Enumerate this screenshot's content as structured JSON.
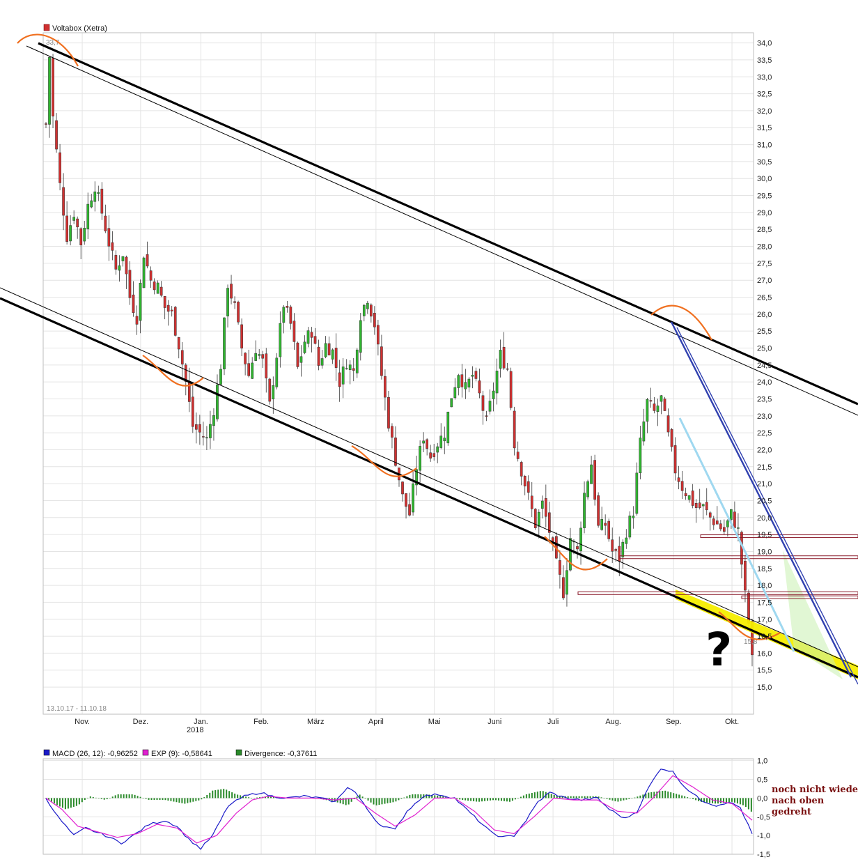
{
  "chart_data": [
    {
      "type": "candlestick",
      "legend_label": "Voltabox (Xetra)",
      "colors": {
        "up": "#2fb52f",
        "down": "#d03030",
        "legend_swatch": "#d03030"
      },
      "date_range_label": "13.10.17 - 11.10.18",
      "year_label": "2018",
      "peak_label": "33,7",
      "low_label": "15,8",
      "ylim": [
        14.2,
        34.3
      ],
      "y_ticks": [
        "34,0",
        "33,5",
        "33,0",
        "32,5",
        "32,0",
        "31,5",
        "31,0",
        "30,5",
        "30,0",
        "29,5",
        "29,0",
        "28,5",
        "28,0",
        "27,5",
        "27,0",
        "26,5",
        "26,0",
        "25,5",
        "25,0",
        "24,5",
        "24,0",
        "23,5",
        "23,0",
        "22,5",
        "22,0",
        "21,5",
        "21,0",
        "20,5",
        "20,0",
        "19,5",
        "19,0",
        "18,5",
        "18,0",
        "17,5",
        "17,0",
        "16,5",
        "16,0",
        "15,5",
        "15,0"
      ],
      "x_ticks": [
        {
          "label": "Nov.",
          "day": 19
        },
        {
          "label": "Dez.",
          "day": 49
        },
        {
          "label": "Jan.",
          "day": 80
        },
        {
          "label": "Feb.",
          "day": 111
        },
        {
          "label": "März",
          "day": 139
        },
        {
          "label": "April",
          "day": 170
        },
        {
          "label": "Mai",
          "day": 200
        },
        {
          "label": "Juni",
          "day": 231
        },
        {
          "label": "Juli",
          "day": 261
        },
        {
          "label": "Aug.",
          "day": 292
        },
        {
          "label": "Sep.",
          "day": 323
        },
        {
          "label": "Okt.",
          "day": 353
        }
      ],
      "price_path": [
        [
          0,
          31.6
        ],
        [
          1,
          33.6
        ],
        [
          2,
          31.8
        ],
        [
          4,
          29.8
        ],
        [
          6,
          28.3
        ],
        [
          8,
          29.0
        ],
        [
          10,
          28.1
        ],
        [
          12,
          29.2
        ],
        [
          14,
          29.8
        ],
        [
          16,
          29.0
        ],
        [
          18,
          28.1
        ],
        [
          20,
          27.3
        ],
        [
          22,
          27.8
        ],
        [
          24,
          26.5
        ],
        [
          26,
          25.9
        ],
        [
          28,
          27.8
        ],
        [
          30,
          27.0
        ],
        [
          32,
          26.8
        ],
        [
          34,
          26.2
        ],
        [
          36,
          26.0
        ],
        [
          38,
          25.1
        ],
        [
          40,
          24.0
        ],
        [
          42,
          22.7
        ],
        [
          44,
          22.5
        ],
        [
          46,
          22.3
        ],
        [
          48,
          23.2
        ],
        [
          50,
          24.5
        ],
        [
          52,
          26.9
        ],
        [
          54,
          26.2
        ],
        [
          56,
          25.0
        ],
        [
          58,
          24.2
        ],
        [
          60,
          25.0
        ],
        [
          62,
          24.6
        ],
        [
          64,
          23.3
        ],
        [
          66,
          24.8
        ],
        [
          68,
          26.3
        ],
        [
          70,
          25.7
        ],
        [
          72,
          24.4
        ],
        [
          74,
          25.2
        ],
        [
          76,
          25.5
        ],
        [
          78,
          24.5
        ],
        [
          80,
          25.1
        ],
        [
          82,
          24.9
        ],
        [
          84,
          24.0
        ],
        [
          86,
          24.6
        ],
        [
          88,
          24.3
        ],
        [
          90,
          26.0
        ],
        [
          92,
          26.5
        ],
        [
          94,
          25.7
        ],
        [
          96,
          24.2
        ],
        [
          98,
          22.8
        ],
        [
          100,
          21.7
        ],
        [
          102,
          20.6
        ],
        [
          104,
          20.1
        ],
        [
          106,
          21.5
        ],
        [
          108,
          22.4
        ],
        [
          110,
          21.8
        ],
        [
          112,
          22.2
        ],
        [
          114,
          22.5
        ],
        [
          116,
          23.6
        ],
        [
          118,
          24.3
        ],
        [
          120,
          23.8
        ],
        [
          122,
          24.2
        ],
        [
          124,
          23.6
        ],
        [
          126,
          22.8
        ],
        [
          128,
          23.8
        ],
        [
          130,
          24.8
        ],
        [
          132,
          24.4
        ],
        [
          134,
          22.2
        ],
        [
          136,
          21.4
        ],
        [
          138,
          20.6
        ],
        [
          140,
          19.8
        ],
        [
          142,
          20.4
        ],
        [
          144,
          19.6
        ],
        [
          146,
          18.6
        ],
        [
          148,
          17.8
        ],
        [
          150,
          19.4
        ],
        [
          152,
          19.0
        ],
        [
          154,
          20.7
        ],
        [
          156,
          21.6
        ],
        [
          158,
          19.7
        ],
        [
          160,
          19.8
        ],
        [
          162,
          19.0
        ],
        [
          164,
          18.8
        ],
        [
          166,
          19.6
        ],
        [
          168,
          20.2
        ],
        [
          170,
          22.2
        ],
        [
          172,
          23.4
        ],
        [
          174,
          23.1
        ],
        [
          176,
          23.5
        ],
        [
          178,
          22.4
        ],
        [
          180,
          21.4
        ],
        [
          182,
          20.9
        ],
        [
          184,
          20.6
        ],
        [
          186,
          20.3
        ],
        [
          188,
          20.3
        ],
        [
          190,
          20.0
        ],
        [
          192,
          19.8
        ],
        [
          194,
          19.6
        ],
        [
          196,
          20.1
        ],
        [
          198,
          19.6
        ],
        [
          200,
          17.7
        ],
        [
          201,
          16.9
        ],
        [
          202,
          15.9
        ]
      ],
      "series": [
        {
          "name": "Voltabox (Xetra)"
        }
      ],
      "horizontal_lines": [
        19.45,
        18.83,
        17.77,
        17.65
      ],
      "annotations": {
        "question_mark": "?"
      }
    },
    {
      "type": "line+bar",
      "ylim": [
        -1.5,
        1.05
      ],
      "y_ticks": [
        {
          "label": "1,0",
          "value": 1.0
        },
        {
          "label": "0,5",
          "value": 0.5
        },
        {
          "label": "0,0",
          "value": 0.0
        },
        {
          "label": "-0,5",
          "value": -0.5
        },
        {
          "label": "-1,0",
          "value": -1.0
        },
        {
          "label": "-1,5",
          "value": -1.5
        }
      ],
      "series": [
        {
          "name": "MACD (26, 12): -0,96252",
          "color": "#1a1ac8"
        },
        {
          "name": "EXP (9): -0,58641",
          "color": "#e020d0"
        },
        {
          "name": "Divergence: -0,37611",
          "color": "#2a8a2a"
        }
      ],
      "macd_path": [
        [
          0,
          0.0
        ],
        [
          6,
          -0.5
        ],
        [
          14,
          -1.0
        ],
        [
          20,
          -0.8
        ],
        [
          30,
          -1.0
        ],
        [
          38,
          -1.2
        ],
        [
          44,
          -1.0
        ],
        [
          52,
          -0.7
        ],
        [
          60,
          -0.6
        ],
        [
          66,
          -0.75
        ],
        [
          72,
          -1.1
        ],
        [
          78,
          -1.35
        ],
        [
          84,
          -1.0
        ],
        [
          92,
          -0.2
        ],
        [
          100,
          0.05
        ],
        [
          108,
          0.15
        ],
        [
          114,
          0.05
        ],
        [
          122,
          0.0
        ],
        [
          130,
          0.05
        ],
        [
          138,
          0.0
        ],
        [
          146,
          -0.1
        ],
        [
          152,
          0.3
        ],
        [
          156,
          0.15
        ],
        [
          162,
          -0.3
        ],
        [
          168,
          -0.7
        ],
        [
          176,
          -0.85
        ],
        [
          182,
          -0.35
        ],
        [
          190,
          0.05
        ],
        [
          198,
          0.1
        ],
        [
          206,
          0.0
        ],
        [
          212,
          -0.3
        ],
        [
          218,
          -0.6
        ],
        [
          224,
          -0.9
        ],
        [
          230,
          -1.05
        ],
        [
          236,
          -1.0
        ],
        [
          242,
          -0.6
        ],
        [
          248,
          -0.1
        ],
        [
          254,
          0.15
        ],
        [
          262,
          0.0
        ],
        [
          270,
          -0.05
        ],
        [
          278,
          0.0
        ],
        [
          284,
          -0.3
        ],
        [
          292,
          -0.55
        ],
        [
          298,
          -0.35
        ],
        [
          304,
          0.3
        ],
        [
          310,
          0.8
        ],
        [
          316,
          0.7
        ],
        [
          322,
          0.3
        ],
        [
          330,
          -0.05
        ],
        [
          338,
          -0.2
        ],
        [
          344,
          -0.1
        ],
        [
          350,
          -0.25
        ],
        [
          356,
          -0.96
        ]
      ],
      "signal_path": [
        [
          0,
          0.0
        ],
        [
          8,
          -0.3
        ],
        [
          16,
          -0.75
        ],
        [
          26,
          -0.9
        ],
        [
          36,
          -1.05
        ],
        [
          46,
          -0.95
        ],
        [
          56,
          -0.7
        ],
        [
          66,
          -0.8
        ],
        [
          76,
          -1.2
        ],
        [
          86,
          -1.0
        ],
        [
          96,
          -0.4
        ],
        [
          104,
          -0.05
        ],
        [
          112,
          0.05
        ],
        [
          122,
          0.0
        ],
        [
          134,
          0.0
        ],
        [
          146,
          -0.05
        ],
        [
          156,
          0.0
        ],
        [
          166,
          -0.4
        ],
        [
          176,
          -0.75
        ],
        [
          186,
          -0.45
        ],
        [
          196,
          0.0
        ],
        [
          206,
          0.0
        ],
        [
          216,
          -0.35
        ],
        [
          226,
          -0.85
        ],
        [
          236,
          -0.95
        ],
        [
          246,
          -0.5
        ],
        [
          256,
          0.0
        ],
        [
          266,
          -0.05
        ],
        [
          278,
          -0.05
        ],
        [
          288,
          -0.35
        ],
        [
          298,
          -0.4
        ],
        [
          306,
          0.0
        ],
        [
          316,
          0.6
        ],
        [
          326,
          0.3
        ],
        [
          336,
          -0.05
        ],
        [
          346,
          -0.15
        ],
        [
          356,
          -0.59
        ]
      ],
      "divergence_path": [
        [
          0,
          0.0
        ],
        [
          6,
          -0.2
        ],
        [
          10,
          -0.3
        ],
        [
          16,
          -0.2
        ],
        [
          22,
          0.05
        ],
        [
          30,
          -0.05
        ],
        [
          36,
          0.1
        ],
        [
          44,
          0.1
        ],
        [
          52,
          -0.05
        ],
        [
          60,
          -0.05
        ],
        [
          70,
          -0.15
        ],
        [
          78,
          -0.05
        ],
        [
          84,
          0.2
        ],
        [
          90,
          0.25
        ],
        [
          96,
          0.1
        ],
        [
          104,
          0.0
        ],
        [
          112,
          0.05
        ],
        [
          122,
          0.0
        ],
        [
          136,
          0.0
        ],
        [
          146,
          -0.1
        ],
        [
          152,
          -0.2
        ],
        [
          158,
          0.1
        ],
        [
          166,
          -0.2
        ],
        [
          176,
          -0.1
        ],
        [
          184,
          0.1
        ],
        [
          192,
          0.1
        ],
        [
          200,
          0.05
        ],
        [
          210,
          -0.05
        ],
        [
          218,
          -0.1
        ],
        [
          226,
          -0.05
        ],
        [
          234,
          -0.1
        ],
        [
          242,
          0.1
        ],
        [
          250,
          0.2
        ],
        [
          258,
          0.05
        ],
        [
          268,
          0.05
        ],
        [
          278,
          0.05
        ],
        [
          288,
          -0.1
        ],
        [
          296,
          0.0
        ],
        [
          304,
          0.15
        ],
        [
          312,
          0.2
        ],
        [
          322,
          0.05
        ],
        [
          330,
          -0.1
        ],
        [
          338,
          -0.15
        ],
        [
          346,
          -0.1
        ],
        [
          352,
          -0.2
        ],
        [
          356,
          -0.38
        ]
      ],
      "note_lines": [
        "noch nicht wieder",
        "nach oben",
        "gedreht"
      ]
    }
  ]
}
